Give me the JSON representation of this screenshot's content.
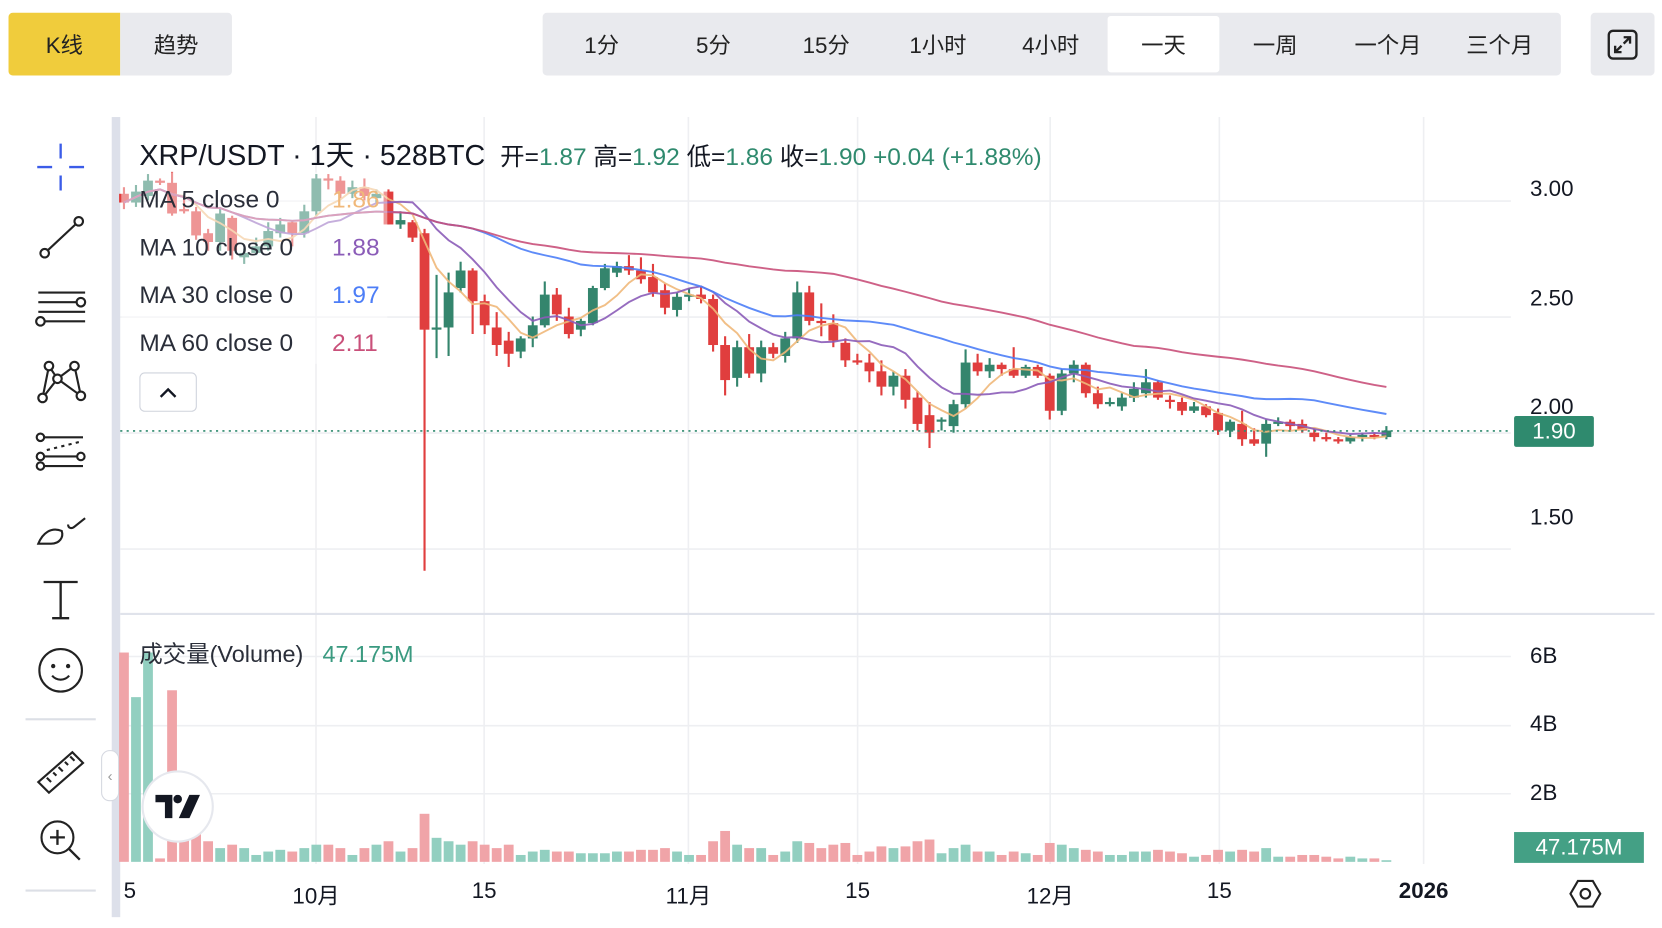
{
  "top_tabs": [
    {
      "label": "K线",
      "active": true
    },
    {
      "label": "趋势",
      "active": false
    }
  ],
  "intervals": [
    {
      "label": "1分"
    },
    {
      "label": "5分"
    },
    {
      "label": "15分"
    },
    {
      "label": "1小时"
    },
    {
      "label": "4小时"
    },
    {
      "label": "一天",
      "active": true
    },
    {
      "label": "一周"
    },
    {
      "label": "一个月"
    },
    {
      "label": "三个月"
    }
  ],
  "fullscreen_icon": "expand-icon",
  "toolbar": [
    "crosshair-icon",
    "trend-line-icon",
    "parallel-lines-icon",
    "pattern-icon",
    "fib-icon",
    "brush-icon",
    "text-icon",
    "emoji-icon",
    "ruler-icon",
    "zoom-in-icon"
  ],
  "header": {
    "symbol": "XRP/USDT · 1天 · 528BTC",
    "open_label": "开=",
    "open": "1.87",
    "high_label": "高=",
    "high": "1.92",
    "low_label": "低=",
    "low": "1.86",
    "close_label": "收=",
    "close": "1.90",
    "change": "+0.04 (+1.88%)"
  },
  "legend": [
    {
      "label": "MA 5 close 0",
      "value": "1.86",
      "color": "#f0b87a"
    },
    {
      "label": "MA 10 close 0",
      "value": "1.88",
      "color": "#8b5cb8"
    },
    {
      "label": "MA 30 close 0",
      "value": "1.97",
      "color": "#4d7ef7"
    },
    {
      "label": "MA 60 close 0",
      "value": "2.11",
      "color": "#c9507a"
    }
  ],
  "volume_legend": {
    "label": "成交量(Volume)",
    "value": "47.175M"
  },
  "price_axis": [
    "3.00",
    "2.50",
    "2.00",
    "1.50"
  ],
  "current_price": "1.90",
  "volume_axis": [
    "6B",
    "4B",
    "2B"
  ],
  "current_volume": "47.175M",
  "time_axis": [
    {
      "label": "5",
      "date": "09-15"
    },
    {
      "label": "10月",
      "date": "10-01"
    },
    {
      "label": "15",
      "date": "10-15"
    },
    {
      "label": "11月",
      "date": "11-01"
    },
    {
      "label": "15",
      "date": "11-15"
    },
    {
      "label": "12月",
      "date": "12-01"
    },
    {
      "label": "15",
      "date": "12-15"
    },
    {
      "label": "2026",
      "date": "01-01"
    }
  ],
  "colors": {
    "up": "#34856d",
    "down": "#e03e3e",
    "up_volume": "#92cfc0",
    "down_volume": "#f0a4a8",
    "accent": "#f0cc3c"
  },
  "chart_data": {
    "type": "candlestick",
    "title": "XRP/USDT · 1天 · 528BTC",
    "ylim": [
      1.2,
      3.15
    ],
    "volume_unit": "B",
    "columns": [
      "date",
      "open",
      "high",
      "low",
      "close",
      "volume"
    ],
    "candles": [
      [
        "09-15",
        2.98,
        3.01,
        2.91,
        2.94,
        6.1
      ],
      [
        "09-16",
        2.94,
        3.02,
        2.92,
        2.99,
        4.8
      ],
      [
        "09-17",
        2.97,
        3.07,
        2.95,
        3.04,
        6.1
      ],
      [
        "09-18",
        3.04,
        3.05,
        3.02,
        3.03,
        0.1
      ],
      [
        "09-19",
        3.03,
        3.08,
        2.88,
        2.89,
        5.0
      ],
      [
        "09-20",
        2.91,
        2.96,
        2.89,
        2.9,
        1.6
      ],
      [
        "09-21",
        2.9,
        2.92,
        2.77,
        2.79,
        1.4
      ],
      [
        "09-22",
        2.8,
        2.82,
        2.72,
        2.76,
        0.6
      ],
      [
        "09-23",
        2.76,
        2.92,
        2.72,
        2.89,
        0.4
      ],
      [
        "09-24",
        2.87,
        2.88,
        2.68,
        2.72,
        0.5
      ],
      [
        "09-25",
        2.69,
        2.73,
        2.66,
        2.71,
        0.4
      ],
      [
        "09-26",
        2.71,
        2.78,
        2.7,
        2.74,
        0.2
      ],
      [
        "09-27",
        2.74,
        2.85,
        2.72,
        2.81,
        0.3
      ],
      [
        "09-28",
        2.8,
        2.87,
        2.78,
        2.84,
        0.35
      ],
      [
        "09-29",
        2.85,
        2.86,
        2.74,
        2.8,
        0.3
      ],
      [
        "09-30",
        2.8,
        2.93,
        2.78,
        2.9,
        0.4
      ],
      [
        "10-01",
        2.9,
        3.07,
        2.88,
        3.05,
        0.5
      ],
      [
        "10-02",
        3.05,
        3.07,
        3.0,
        3.04,
        0.5
      ],
      [
        "10-03",
        3.04,
        3.06,
        2.96,
        2.98,
        0.4
      ],
      [
        "10-04",
        2.98,
        3.04,
        2.96,
        3.01,
        0.2
      ],
      [
        "10-05",
        3.01,
        3.05,
        2.95,
        2.97,
        0.4
      ],
      [
        "10-06",
        2.96,
        3.0,
        2.94,
        2.98,
        0.5
      ],
      [
        "10-07",
        2.99,
        3.0,
        2.84,
        2.84,
        0.6
      ],
      [
        "10-08",
        2.84,
        2.9,
        2.82,
        2.86,
        0.3
      ],
      [
        "10-09",
        2.85,
        2.86,
        2.76,
        2.78,
        0.4
      ],
      [
        "10-10",
        2.8,
        2.82,
        1.26,
        2.36,
        1.4
      ],
      [
        "10-11",
        2.36,
        2.61,
        2.23,
        2.37,
        0.7
      ],
      [
        "10-12",
        2.37,
        2.62,
        2.24,
        2.53,
        0.6
      ],
      [
        "10-13",
        2.55,
        2.67,
        2.53,
        2.63,
        0.5
      ],
      [
        "10-14",
        2.63,
        2.64,
        2.34,
        2.49,
        0.6
      ],
      [
        "10-15",
        2.49,
        2.52,
        2.34,
        2.38,
        0.5
      ],
      [
        "10-16",
        2.37,
        2.44,
        2.24,
        2.29,
        0.4
      ],
      [
        "10-17",
        2.31,
        2.35,
        2.19,
        2.25,
        0.5
      ],
      [
        "10-18",
        2.26,
        2.33,
        2.23,
        2.32,
        0.2
      ],
      [
        "10-19",
        2.32,
        2.42,
        2.28,
        2.38,
        0.3
      ],
      [
        "10-20",
        2.38,
        2.58,
        2.37,
        2.52,
        0.35
      ],
      [
        "10-21",
        2.52,
        2.55,
        2.4,
        2.43,
        0.3
      ],
      [
        "10-22",
        2.42,
        2.46,
        2.32,
        2.34,
        0.3
      ],
      [
        "10-23",
        2.36,
        2.41,
        2.33,
        2.4,
        0.25
      ],
      [
        "10-24",
        2.39,
        2.56,
        2.38,
        2.55,
        0.25
      ],
      [
        "10-25",
        2.55,
        2.66,
        2.54,
        2.64,
        0.25
      ],
      [
        "10-26",
        2.62,
        2.67,
        2.6,
        2.65,
        0.3
      ],
      [
        "10-27",
        2.65,
        2.7,
        2.61,
        2.63,
        0.3
      ],
      [
        "10-28",
        2.63,
        2.69,
        2.57,
        2.59,
        0.35
      ],
      [
        "10-29",
        2.6,
        2.66,
        2.51,
        2.53,
        0.35
      ],
      [
        "10-30",
        2.54,
        2.57,
        2.43,
        2.46,
        0.4
      ],
      [
        "10-31",
        2.45,
        2.53,
        2.42,
        2.51,
        0.3
      ],
      [
        "11-01",
        2.51,
        2.55,
        2.49,
        2.52,
        0.2
      ],
      [
        "11-02",
        2.52,
        2.56,
        2.48,
        2.5,
        0.2
      ],
      [
        "11-03",
        2.5,
        2.52,
        2.26,
        2.29,
        0.6
      ],
      [
        "11-04",
        2.29,
        2.33,
        2.06,
        2.13,
        0.9
      ],
      [
        "11-05",
        2.14,
        2.31,
        2.1,
        2.28,
        0.5
      ],
      [
        "11-06",
        2.28,
        2.34,
        2.14,
        2.16,
        0.4
      ],
      [
        "11-07",
        2.16,
        2.31,
        2.12,
        2.28,
        0.4
      ],
      [
        "11-08",
        2.28,
        2.3,
        2.23,
        2.25,
        0.2
      ],
      [
        "11-09",
        2.24,
        2.35,
        2.21,
        2.32,
        0.3
      ],
      [
        "11-10",
        2.32,
        2.58,
        2.3,
        2.53,
        0.6
      ],
      [
        "11-11",
        2.53,
        2.56,
        2.38,
        2.4,
        0.55
      ],
      [
        "11-12",
        2.4,
        2.48,
        2.33,
        2.39,
        0.4
      ],
      [
        "11-13",
        2.39,
        2.43,
        2.28,
        2.31,
        0.5
      ],
      [
        "11-14",
        2.3,
        2.32,
        2.19,
        2.22,
        0.55
      ],
      [
        "11-15",
        2.22,
        2.25,
        2.2,
        2.21,
        0.2
      ],
      [
        "11-16",
        2.21,
        2.25,
        2.12,
        2.17,
        0.3
      ],
      [
        "11-17",
        2.17,
        2.22,
        2.06,
        2.1,
        0.45
      ],
      [
        "11-18",
        2.1,
        2.17,
        2.06,
        2.15,
        0.4
      ],
      [
        "11-19",
        2.15,
        2.18,
        2.0,
        2.04,
        0.45
      ],
      [
        "11-20",
        2.05,
        2.08,
        1.9,
        1.93,
        0.6
      ],
      [
        "11-21",
        1.97,
        2.03,
        1.82,
        1.89,
        0.65
      ],
      [
        "11-22",
        1.94,
        1.96,
        1.9,
        1.95,
        0.25
      ],
      [
        "11-23",
        1.92,
        2.04,
        1.89,
        2.02,
        0.4
      ],
      [
        "11-24",
        2.02,
        2.27,
        2.0,
        2.21,
        0.5
      ],
      [
        "11-25",
        2.21,
        2.25,
        2.15,
        2.17,
        0.3
      ],
      [
        "11-26",
        2.17,
        2.23,
        2.14,
        2.2,
        0.3
      ],
      [
        "11-27",
        2.2,
        2.21,
        2.15,
        2.18,
        0.2
      ],
      [
        "11-28",
        2.18,
        2.28,
        2.14,
        2.15,
        0.3
      ],
      [
        "11-29",
        2.15,
        2.2,
        2.14,
        2.19,
        0.25
      ],
      [
        "11-30",
        2.19,
        2.2,
        2.14,
        2.15,
        0.2
      ],
      [
        "12-01",
        2.15,
        2.16,
        1.95,
        1.99,
        0.55
      ],
      [
        "12-02",
        1.99,
        2.18,
        1.97,
        2.16,
        0.5
      ],
      [
        "12-03",
        2.16,
        2.22,
        2.12,
        2.2,
        0.4
      ],
      [
        "12-04",
        2.2,
        2.21,
        2.05,
        2.07,
        0.35
      ],
      [
        "12-05",
        2.07,
        2.1,
        2.0,
        2.02,
        0.3
      ],
      [
        "12-06",
        2.03,
        2.05,
        2.01,
        2.03,
        0.2
      ],
      [
        "12-07",
        2.01,
        2.07,
        1.99,
        2.05,
        0.2
      ],
      [
        "12-08",
        2.05,
        2.12,
        2.03,
        2.09,
        0.3
      ],
      [
        "12-09",
        2.07,
        2.18,
        2.05,
        2.12,
        0.3
      ],
      [
        "12-10",
        2.12,
        2.13,
        2.04,
        2.05,
        0.35
      ],
      [
        "12-11",
        2.04,
        2.06,
        2.0,
        2.03,
        0.3
      ],
      [
        "12-12",
        2.03,
        2.05,
        1.97,
        1.99,
        0.25
      ],
      [
        "12-13",
        1.99,
        2.03,
        1.98,
        2.01,
        0.15
      ],
      [
        "12-14",
        2.01,
        2.02,
        1.96,
        1.97,
        0.2
      ],
      [
        "12-15",
        1.98,
        2.0,
        1.88,
        1.9,
        0.35
      ],
      [
        "12-16",
        1.9,
        1.95,
        1.87,
        1.94,
        0.3
      ],
      [
        "12-17",
        1.93,
        1.99,
        1.83,
        1.86,
        0.35
      ],
      [
        "12-18",
        1.86,
        1.91,
        1.83,
        1.84,
        0.3
      ],
      [
        "12-19",
        1.84,
        1.95,
        1.78,
        1.93,
        0.4
      ],
      [
        "12-20",
        1.93,
        1.96,
        1.92,
        1.94,
        0.15
      ],
      [
        "12-21",
        1.94,
        1.95,
        1.9,
        1.92,
        0.15
      ],
      [
        "12-22",
        1.93,
        1.95,
        1.89,
        1.9,
        0.2
      ],
      [
        "12-23",
        1.89,
        1.91,
        1.85,
        1.87,
        0.2
      ],
      [
        "12-24",
        1.87,
        1.89,
        1.85,
        1.86,
        0.15
      ],
      [
        "12-25",
        1.86,
        1.87,
        1.84,
        1.85,
        0.1
      ],
      [
        "12-26",
        1.85,
        1.88,
        1.84,
        1.87,
        0.15
      ],
      [
        "12-27",
        1.87,
        1.89,
        1.85,
        1.88,
        0.1
      ],
      [
        "12-28",
        1.88,
        1.89,
        1.86,
        1.87,
        0.1
      ],
      [
        "12-29",
        1.87,
        1.92,
        1.86,
        1.9,
        0.047
      ]
    ],
    "moving_averages": [
      5,
      10,
      30,
      60
    ]
  }
}
